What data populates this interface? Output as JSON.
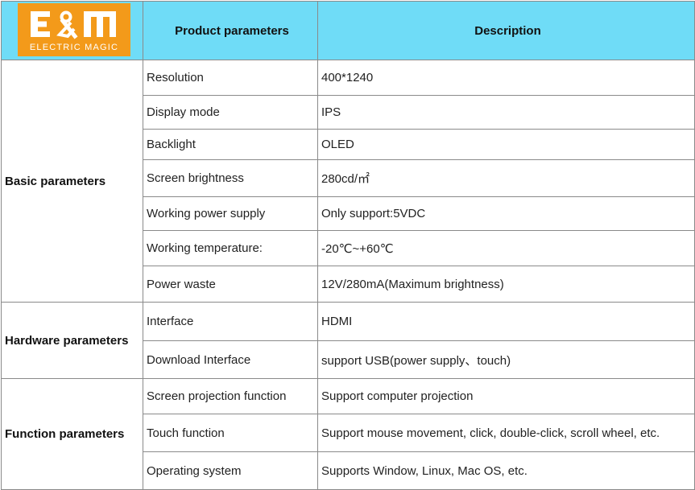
{
  "logo": {
    "text": "ELECTRIC MAGIC",
    "mark_text": "E&M",
    "color": "#f39a1a"
  },
  "header": {
    "col2": "Product parameters",
    "col3": "Description",
    "background": "#6fdcf7"
  },
  "groups": [
    {
      "label": "Basic parameters",
      "rows": [
        {
          "param": "Resolution",
          "desc": "400*1240"
        },
        {
          "param": "Display mode",
          "desc": "IPS"
        },
        {
          "param": "Backlight",
          "desc": "OLED"
        },
        {
          "param": "Screen brightness",
          "desc": "280cd/㎡"
        },
        {
          "param": "Working power supply",
          "desc": "Only support:5VDC"
        },
        {
          "param": "Working temperature:",
          "desc": "-20℃~+60℃"
        },
        {
          "param": "Power waste",
          "desc": "12V/280mA(Maximum brightness)"
        }
      ]
    },
    {
      "label": "Hardware parameters",
      "rows": [
        {
          "param": "Interface",
          "desc": "HDMI"
        },
        {
          "param": "Download Interface",
          "desc": "support USB(power supply、touch)"
        }
      ]
    },
    {
      "label": "Function parameters",
      "rows": [
        {
          "param": "Screen projection function",
          "desc": "Support computer projection"
        },
        {
          "param": "Touch function",
          "desc": "Support mouse movement, click, double-click, scroll wheel, etc."
        },
        {
          "param": "Operating system",
          "desc": "Supports Window, Linux, Mac OS, etc."
        }
      ]
    }
  ]
}
